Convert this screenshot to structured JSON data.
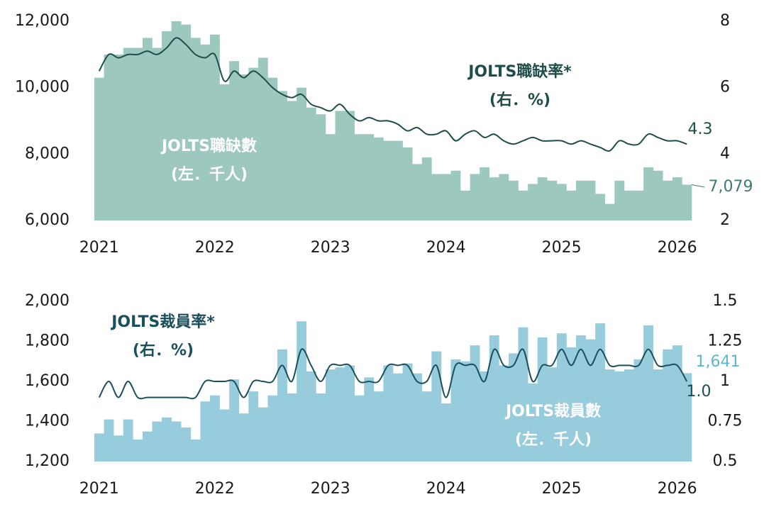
{
  "chart_data": [
    {
      "type": "bar_line",
      "categories": [
        "2021",
        null,
        null,
        null,
        null,
        null,
        null,
        null,
        null,
        null,
        null,
        null,
        "2022",
        null,
        null,
        null,
        null,
        null,
        null,
        null,
        null,
        null,
        null,
        null,
        "2023",
        null,
        null,
        null,
        null,
        null,
        null,
        null,
        null,
        null,
        null,
        null,
        "2024",
        null,
        null,
        null,
        null,
        null,
        null,
        null,
        null,
        null,
        null,
        null,
        "2025",
        null,
        null,
        null,
        null,
        null,
        null,
        null,
        null,
        null,
        null,
        null,
        "2026",
        null
      ],
      "ylim": [
        6000,
        12000
      ],
      "yticks": [
        {
          "value": 6000,
          "label": "6,000"
        },
        {
          "value": 8000,
          "label": "8,000"
        },
        {
          "value": 10000,
          "label": "10,000"
        },
        {
          "value": 12000,
          "label": "12,000"
        }
      ],
      "y2lim": [
        2,
        8
      ],
      "y2ticks": [
        2,
        4,
        6,
        8
      ],
      "series": [
        {
          "name": "JOLTS職缺數",
          "unit_note": "(左．千人)",
          "color": "#9cc8c0",
          "kind": "bar",
          "last_label": "7,079",
          "values": [
            10300,
            11000,
            11000,
            11200,
            11200,
            11500,
            11200,
            11700,
            12000,
            11900,
            11500,
            11300,
            11600,
            10100,
            10800,
            10400,
            10600,
            10900,
            10300,
            9900,
            9600,
            10000,
            9400,
            9200,
            8600,
            9300,
            9300,
            8600,
            8600,
            8500,
            8400,
            8400,
            8200,
            7700,
            7900,
            7400,
            7400,
            7500,
            6900,
            7400,
            7600,
            7300,
            7400,
            7200,
            6900,
            7100,
            7300,
            7200,
            7100,
            6900,
            7200,
            7200,
            6800,
            6500,
            7200,
            6900,
            6900,
            7600,
            7500,
            7200,
            7300,
            7079
          ]
        },
        {
          "name": "JOLTS職缺率*",
          "unit_note": "(右．%)",
          "color": "#1f4e4a",
          "kind": "line",
          "axis": "y2",
          "last_label": "4.3",
          "values": [
            6.5,
            7.0,
            6.9,
            7.0,
            7.0,
            7.1,
            7.0,
            7.2,
            7.5,
            7.3,
            7.0,
            6.9,
            7.0,
            6.2,
            6.5,
            6.3,
            6.5,
            6.3,
            6.0,
            5.8,
            5.7,
            5.8,
            5.5,
            5.4,
            5.3,
            5.5,
            5.2,
            5.0,
            5.1,
            5.0,
            5.0,
            4.9,
            4.7,
            4.8,
            4.6,
            4.6,
            4.7,
            4.4,
            4.6,
            4.7,
            4.5,
            4.6,
            4.4,
            4.3,
            4.4,
            4.5,
            4.4,
            4.4,
            4.4,
            4.3,
            4.4,
            4.3,
            4.2,
            4.1,
            4.4,
            4.3,
            4.3,
            4.6,
            4.5,
            4.4,
            4.4,
            4.3
          ]
        }
      ]
    },
    {
      "type": "bar_line",
      "categories": [
        "2021",
        null,
        null,
        null,
        null,
        null,
        null,
        null,
        null,
        null,
        null,
        null,
        "2022",
        null,
        null,
        null,
        null,
        null,
        null,
        null,
        null,
        null,
        null,
        null,
        "2023",
        null,
        null,
        null,
        null,
        null,
        null,
        null,
        null,
        null,
        null,
        null,
        "2024",
        null,
        null,
        null,
        null,
        null,
        null,
        null,
        null,
        null,
        null,
        null,
        "2025",
        null,
        null,
        null,
        null,
        null,
        null,
        null,
        null,
        null,
        null,
        null,
        "2026",
        null
      ],
      "ylim": [
        1200,
        2000
      ],
      "yticks": [
        {
          "value": 1200,
          "label": "1,200"
        },
        {
          "value": 1400,
          "label": "1,400"
        },
        {
          "value": 1600,
          "label": "1,600"
        },
        {
          "value": 1800,
          "label": "1,800"
        },
        {
          "value": 2000,
          "label": "2,000"
        }
      ],
      "y2lim": [
        0.5,
        1.5
      ],
      "y2ticks": [
        0.5,
        0.75,
        1,
        1.25,
        1.5
      ],
      "series": [
        {
          "name": "JOLTS裁員數",
          "unit_note": "(左．千人)",
          "color": "#96ccdc",
          "kind": "bar",
          "last_label": "1,641",
          "values": [
            1340,
            1410,
            1330,
            1410,
            1310,
            1350,
            1400,
            1420,
            1400,
            1370,
            1310,
            1500,
            1530,
            1460,
            1610,
            1440,
            1550,
            1470,
            1530,
            1760,
            1540,
            1900,
            1650,
            1540,
            1660,
            1670,
            1680,
            1530,
            1620,
            1550,
            1680,
            1640,
            1690,
            1640,
            1550,
            1750,
            1490,
            1710,
            1700,
            1780,
            1650,
            1830,
            1680,
            1740,
            1870,
            1590,
            1820,
            1670,
            1840,
            1770,
            1830,
            1810,
            1890,
            1660,
            1650,
            1660,
            1710,
            1880,
            1660,
            1760,
            1780,
            1641
          ]
        },
        {
          "name": "JOLTS裁員率*",
          "unit_note": "(右．%)",
          "color": "#1b4f5c",
          "kind": "line",
          "axis": "y2",
          "last_label": "1.0",
          "values": [
            0.9,
            1.0,
            0.9,
            1.0,
            0.9,
            0.9,
            0.9,
            0.9,
            0.9,
            0.9,
            0.9,
            1.0,
            1.0,
            1.0,
            1.0,
            0.9,
            1.0,
            1.0,
            1.0,
            1.1,
            1.0,
            1.2,
            1.1,
            1.0,
            1.1,
            1.1,
            1.1,
            1.0,
            1.0,
            1.0,
            1.1,
            1.1,
            1.1,
            1.0,
            1.0,
            1.1,
            0.9,
            1.1,
            1.1,
            1.1,
            1.0,
            1.2,
            1.1,
            1.1,
            1.2,
            1.0,
            1.1,
            1.1,
            1.2,
            1.1,
            1.2,
            1.1,
            1.2,
            1.1,
            1.1,
            1.1,
            1.1,
            1.2,
            1.1,
            1.1,
            1.1,
            1.0
          ]
        }
      ]
    }
  ]
}
